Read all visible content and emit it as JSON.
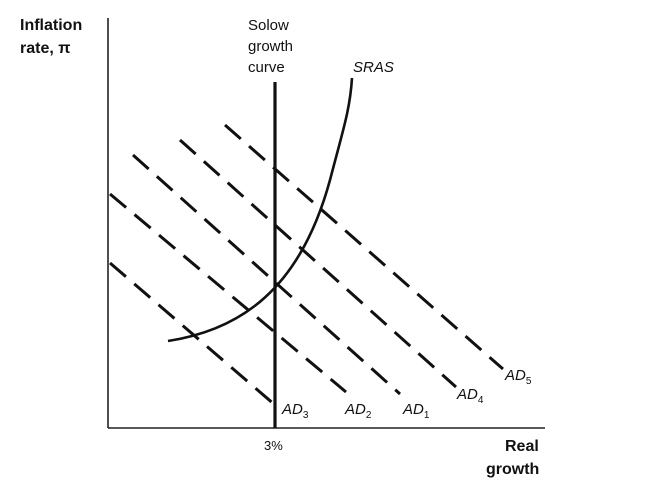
{
  "y_axis_title": {
    "line1": "Inflation",
    "line2": "rate, π"
  },
  "x_axis_title": {
    "line1": "Real",
    "line2": "growth"
  },
  "solow_label": {
    "line1": "Solow",
    "line2": "growth",
    "line3": "curve"
  },
  "sras_label": "SRAS",
  "x_tick_label": "3%",
  "ad_curves": [
    {
      "id": "AD3",
      "base": "AD",
      "sub": "3"
    },
    {
      "id": "AD2",
      "base": "AD",
      "sub": "2"
    },
    {
      "id": "AD1",
      "base": "AD",
      "sub": "1"
    },
    {
      "id": "AD4",
      "base": "AD",
      "sub": "4"
    },
    {
      "id": "AD5",
      "base": "AD",
      "sub": "5"
    }
  ]
}
